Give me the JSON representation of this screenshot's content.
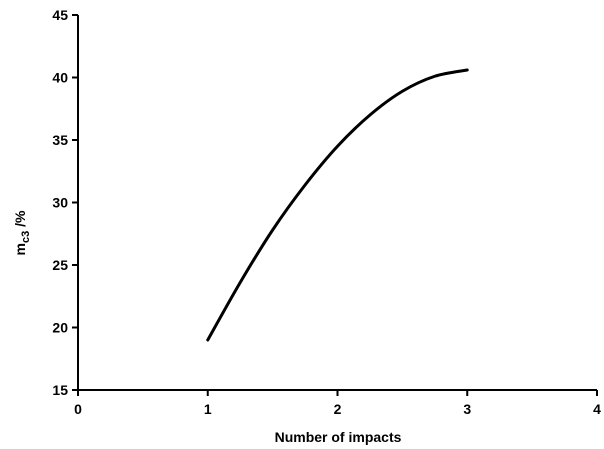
{
  "chart_data": {
    "type": "line",
    "title": "",
    "xlabel": "Number of impacts",
    "ylabel_main": "m",
    "ylabel_sub": "c3",
    "ylabel_suffix": " /%",
    "xlim": [
      0,
      4
    ],
    "ylim": [
      15,
      45
    ],
    "xticks": [
      0,
      1,
      2,
      3,
      4
    ],
    "yticks": [
      15,
      20,
      25,
      30,
      35,
      40,
      45
    ],
    "grid": false,
    "legend": "none",
    "series": [
      {
        "x": [
          1.0,
          1.25,
          1.5,
          1.75,
          2.0,
          2.25,
          2.5,
          2.75,
          3.0
        ],
        "y": [
          19.0,
          23.6,
          27.8,
          31.4,
          34.5,
          37.0,
          38.9,
          40.1,
          40.6
        ]
      }
    ]
  }
}
